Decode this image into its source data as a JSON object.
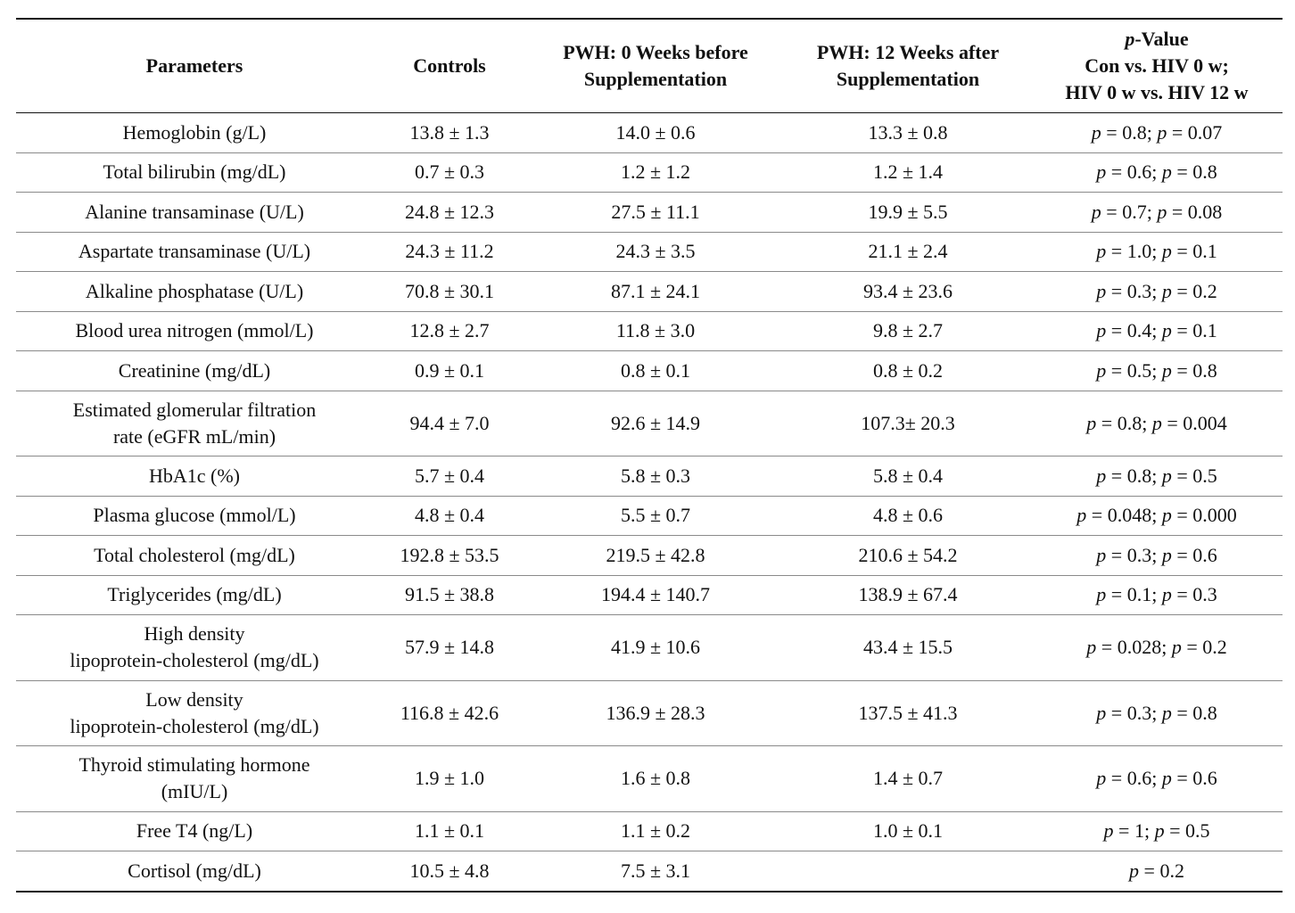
{
  "headers": {
    "parameters": "Parameters",
    "controls": "Controls",
    "pwh0": [
      "PWH: 0 Weeks before",
      "Supplementation"
    ],
    "pwh12": [
      "PWH: 12 Weeks after",
      "Supplementation"
    ],
    "pvalue": [
      "p-Value",
      "Con vs. HIV 0 w;",
      "HIV 0 w vs. HIV 12 w"
    ]
  },
  "rows": [
    {
      "param": [
        "Hemoglobin (g/L)"
      ],
      "controls": "13.8 ± 1.3",
      "pwh0": "14.0 ± 0.6",
      "pwh12": "13.3 ± 0.8",
      "p1": "0.8",
      "p2": "0.07"
    },
    {
      "param": [
        "Total bilirubin (mg/dL)"
      ],
      "controls": "0.7 ± 0.3",
      "pwh0": "1.2 ± 1.2",
      "pwh12": "1.2 ± 1.4",
      "p1": "0.6",
      "p2": "0.8"
    },
    {
      "param": [
        "Alanine transaminase (U/L)"
      ],
      "controls": "24.8 ± 12.3",
      "pwh0": "27.5 ± 11.1",
      "pwh12": "19.9 ± 5.5",
      "p1": "0.7",
      "p2": "0.08"
    },
    {
      "param": [
        "Aspartate transaminase (U/L)"
      ],
      "controls": "24.3 ± 11.2",
      "pwh0": "24.3 ± 3.5",
      "pwh12": "21.1 ± 2.4",
      "p1": "1.0",
      "p2": "0.1"
    },
    {
      "param": [
        "Alkaline phosphatase (U/L)"
      ],
      "controls": "70.8 ± 30.1",
      "pwh0": "87.1 ± 24.1",
      "pwh12": "93.4 ± 23.6",
      "p1": "0.3",
      "p2": "0.2"
    },
    {
      "param": [
        "Blood urea nitrogen (mmol/L)"
      ],
      "controls": "12.8 ± 2.7",
      "pwh0": "11.8 ± 3.0",
      "pwh12": "9.8 ± 2.7",
      "p1": "0.4",
      "p2": "0.1"
    },
    {
      "param": [
        "Creatinine (mg/dL)"
      ],
      "controls": "0.9 ± 0.1",
      "pwh0": "0.8 ± 0.1",
      "pwh12": "0.8 ± 0.2",
      "p1": "0.5",
      "p2": "0.8"
    },
    {
      "param": [
        "Estimated glomerular filtration",
        "rate (eGFR mL/min)"
      ],
      "controls": "94.4 ± 7.0",
      "pwh0": "92.6 ± 14.9",
      "pwh12": "107.3± 20.3",
      "p1": "0.8",
      "p2": "0.004"
    },
    {
      "param": [
        "HbA1c (%)"
      ],
      "controls": "5.7 ± 0.4",
      "pwh0": "5.8 ± 0.3",
      "pwh12": "5.8 ± 0.4",
      "p1": "0.8",
      "p2": "0.5"
    },
    {
      "param": [
        "Plasma glucose (mmol/L)"
      ],
      "controls": "4.8 ± 0.4",
      "pwh0": "5.5 ± 0.7",
      "pwh12": "4.8 ± 0.6",
      "p1": "0.048",
      "p2": "0.000"
    },
    {
      "param": [
        "Total cholesterol (mg/dL)"
      ],
      "controls": "192.8 ± 53.5",
      "pwh0": "219.5 ± 42.8",
      "pwh12": "210.6 ± 54.2",
      "p1": "0.3",
      "p2": "0.6"
    },
    {
      "param": [
        "Triglycerides (mg/dL)"
      ],
      "controls": "91.5 ± 38.8",
      "pwh0": "194.4 ± 140.7",
      "pwh12": "138.9 ± 67.4",
      "p1": "0.1",
      "p2": "0.3"
    },
    {
      "param": [
        "High density",
        "lipoprotein-cholesterol (mg/dL)"
      ],
      "controls": "57.9 ± 14.8",
      "pwh0": "41.9 ± 10.6",
      "pwh12": "43.4 ± 15.5",
      "p1": "0.028",
      "p2": "0.2"
    },
    {
      "param": [
        "Low density",
        "lipoprotein-cholesterol (mg/dL)"
      ],
      "controls": "116.8 ± 42.6",
      "pwh0": "136.9 ± 28.3",
      "pwh12": "137.5 ± 41.3",
      "p1": "0.3",
      "p2": "0.8"
    },
    {
      "param": [
        "Thyroid stimulating hormone",
        "(mIU/L)"
      ],
      "controls": "1.9 ± 1.0",
      "pwh0": "1.6 ± 0.8",
      "pwh12": "1.4 ± 0.7",
      "p1": "0.6",
      "p2": "0.6"
    },
    {
      "param": [
        "Free T4 (ng/L)"
      ],
      "controls": "1.1 ± 0.1",
      "pwh0": "1.1 ± 0.2",
      "pwh12": "1.0 ± 0.1",
      "p1": "1",
      "p2": "0.5"
    },
    {
      "param": [
        "Cortisol (mg/dL)"
      ],
      "controls": "10.5 ± 4.8",
      "pwh0": "7.5 ± 3.1",
      "pwh12": "",
      "p1": "0.2",
      "p2": null
    }
  ]
}
